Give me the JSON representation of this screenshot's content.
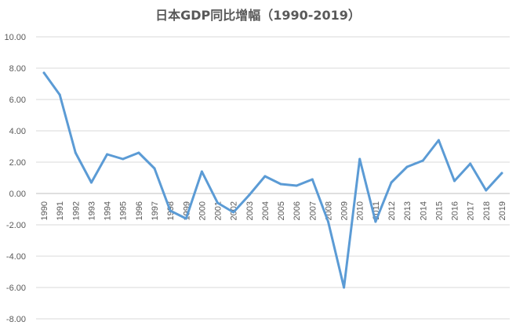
{
  "chart_data": {
    "type": "line",
    "title": "日本GDP同比增幅（1990-2019）",
    "xlabel": "",
    "ylabel": "",
    "ylim": [
      -8,
      10
    ],
    "y_ticks": [
      "10.00",
      "8.00",
      "6.00",
      "4.00",
      "2.00",
      "0.00",
      "-2.00",
      "-4.00",
      "-6.00",
      "-8.00"
    ],
    "grid": true,
    "legend": "none",
    "x": [
      "1990",
      "1991",
      "1992",
      "1993",
      "1994",
      "1995",
      "1996",
      "1997",
      "1998",
      "1999",
      "2000",
      "2001",
      "2002",
      "2003",
      "2004",
      "2005",
      "2006",
      "2007",
      "2008",
      "2009",
      "2010",
      "2011",
      "2012",
      "2013",
      "2014",
      "2015",
      "2016",
      "2017",
      "2018",
      "2019"
    ],
    "series": [
      {
        "values": [
          7.7,
          6.3,
          2.6,
          0.7,
          2.5,
          2.2,
          2.6,
          1.6,
          -1.1,
          -1.6,
          1.4,
          -0.6,
          -1.2,
          -0.1,
          1.1,
          0.6,
          0.5,
          0.9,
          -1.8,
          -6.0,
          2.2,
          -1.8,
          0.7,
          1.7,
          2.1,
          3.4,
          0.8,
          1.9,
          0.2,
          1.3
        ],
        "color": "#5b9bd5"
      }
    ]
  }
}
